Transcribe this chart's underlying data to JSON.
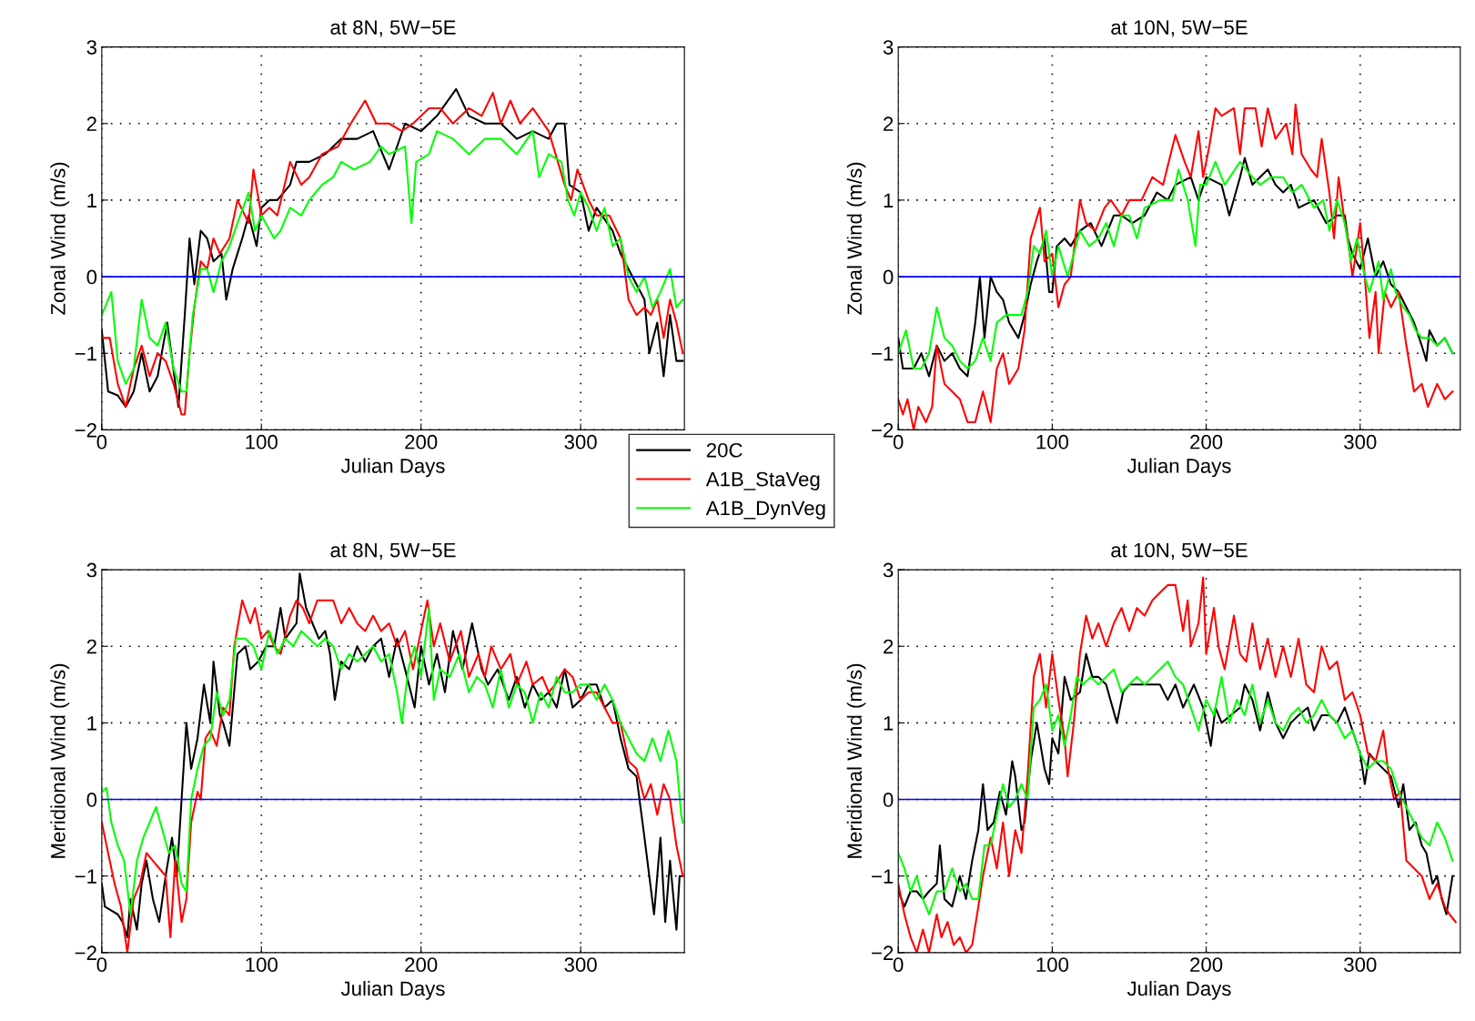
{
  "chart_data": [
    {
      "type": "line",
      "title": "at 8N, 5W−5E",
      "xlabel": "Julian Days",
      "ylabel": "Zonal Wind (m/s)",
      "xlim": [
        0,
        365
      ],
      "ylim": [
        -2,
        3
      ],
      "xticks": [
        0,
        100,
        200,
        300
      ],
      "yticks": [
        -2,
        -1,
        0,
        1,
        2,
        3
      ],
      "grid": true,
      "legend": "bottom right",
      "line_style": "solid",
      "ref_lines": [
        {
          "axis": "y",
          "value": 0,
          "color": "#0000ff"
        }
      ],
      "series": [
        {
          "name": "20C",
          "color": "#000000",
          "x": [
            0,
            4,
            10,
            15,
            20,
            25,
            30,
            35,
            41,
            48,
            52,
            55,
            58,
            62,
            66,
            70,
            75,
            78,
            82,
            88,
            92,
            97,
            100,
            105,
            110,
            118,
            122,
            130,
            140,
            150,
            160,
            170,
            180,
            190,
            200,
            210,
            222,
            230,
            240,
            250,
            260,
            270,
            280,
            285,
            290,
            293,
            300,
            305,
            310,
            320,
            325,
            330,
            335,
            340,
            343,
            348,
            352,
            356,
            360,
            364
          ],
          "values": [
            -0.7,
            -1.5,
            -1.55,
            -1.7,
            -1.5,
            -1.0,
            -1.5,
            -1.3,
            -0.6,
            -1.7,
            -0.5,
            0.5,
            -0.1,
            0.6,
            0.5,
            0.2,
            0.3,
            -0.3,
            0.1,
            0.5,
            0.8,
            0.4,
            0.9,
            1.0,
            1.0,
            1.2,
            1.5,
            1.5,
            1.6,
            1.8,
            1.8,
            1.9,
            1.4,
            2.0,
            1.9,
            2.1,
            2.45,
            2.1,
            2.0,
            2.0,
            1.8,
            1.9,
            1.8,
            2.0,
            2.0,
            1.2,
            1.1,
            0.6,
            0.9,
            0.6,
            0.3,
            0.1,
            -0.1,
            -0.3,
            -1.0,
            -0.6,
            -1.3,
            -0.5,
            -1.1,
            -1.1
          ]
        },
        {
          "name": "A1B_StaVeg",
          "color": "#ff0000",
          "x": [
            0,
            5,
            10,
            15,
            20,
            25,
            30,
            35,
            40,
            45,
            50,
            52,
            55,
            58,
            62,
            66,
            70,
            74,
            80,
            85,
            92,
            95,
            100,
            105,
            110,
            118,
            125,
            130,
            138,
            148,
            156,
            165,
            172,
            180,
            188,
            195,
            205,
            212,
            220,
            230,
            238,
            245,
            250,
            256,
            262,
            270,
            280,
            290,
            294,
            298,
            305,
            310,
            318,
            325,
            330,
            335,
            340,
            344,
            348,
            352,
            356,
            360,
            364
          ],
          "values": [
            -0.8,
            -0.8,
            -1.4,
            -1.7,
            -1.2,
            -0.9,
            -1.3,
            -1.0,
            -1.1,
            -1.4,
            -1.8,
            -1.8,
            -1.0,
            -0.4,
            0.2,
            0.1,
            0.5,
            0.3,
            0.5,
            1.0,
            0.7,
            1.4,
            0.8,
            0.9,
            0.8,
            1.5,
            1.2,
            1.3,
            1.6,
            1.7,
            2.0,
            2.3,
            2.0,
            2.0,
            1.9,
            2.0,
            2.2,
            2.2,
            2.0,
            2.2,
            2.1,
            2.4,
            2.0,
            2.3,
            2.0,
            2.2,
            1.9,
            1.2,
            1.0,
            1.4,
            1.0,
            0.8,
            0.8,
            0.5,
            -0.3,
            -0.5,
            -0.4,
            -0.5,
            -0.3,
            -0.8,
            -0.3,
            -0.6,
            -1.0
          ]
        },
        {
          "name": "A1B_DynVeg",
          "color": "#00ff00",
          "x": [
            0,
            6,
            10,
            15,
            20,
            25,
            30,
            35,
            40,
            45,
            50,
            53,
            57,
            62,
            66,
            70,
            75,
            80,
            85,
            92,
            96,
            100,
            108,
            112,
            118,
            125,
            130,
            138,
            145,
            150,
            158,
            168,
            175,
            180,
            190,
            194,
            197,
            205,
            210,
            220,
            230,
            240,
            250,
            260,
            270,
            274,
            280,
            288,
            292,
            296,
            300,
            305,
            310,
            315,
            320,
            325,
            330,
            335,
            340,
            345,
            350,
            356,
            360,
            364
          ],
          "values": [
            -0.5,
            -0.2,
            -1.1,
            -1.4,
            -1.2,
            -0.3,
            -0.8,
            -0.9,
            -0.6,
            -1.2,
            -1.5,
            -1.5,
            -0.5,
            0.1,
            0.1,
            -0.2,
            0.2,
            0.4,
            0.7,
            1.1,
            0.6,
            0.8,
            0.5,
            0.6,
            0.9,
            0.8,
            1.0,
            1.2,
            1.3,
            1.5,
            1.4,
            1.5,
            1.7,
            1.6,
            1.7,
            0.7,
            1.5,
            1.6,
            1.9,
            1.8,
            1.6,
            1.8,
            1.8,
            1.6,
            1.9,
            1.3,
            1.6,
            1.5,
            1.0,
            0.8,
            1.1,
            0.9,
            0.6,
            0.9,
            0.4,
            0.5,
            0.0,
            -0.2,
            0.0,
            -0.4,
            -0.2,
            0.1,
            -0.4,
            -0.3
          ]
        }
      ]
    },
    {
      "type": "line",
      "title": "at 10N, 5W−5E",
      "xlabel": "Julian Days",
      "ylabel": "Zonal Wind (m/s)",
      "xlim": [
        0,
        365
      ],
      "ylim": [
        -2,
        3
      ],
      "xticks": [
        0,
        100,
        200,
        300
      ],
      "yticks": [
        -2,
        -1,
        0,
        1,
        2,
        3
      ],
      "grid": true,
      "line_style": "solid",
      "ref_lines": [
        {
          "axis": "y",
          "value": 0,
          "color": "#0000ff"
        }
      ],
      "series": [
        {
          "color": "#000000",
          "x": [
            0,
            3,
            10,
            15,
            20,
            25,
            30,
            35,
            40,
            45,
            50,
            53,
            56,
            60,
            64,
            68,
            72,
            78,
            82,
            86,
            90,
            95,
            98,
            100,
            103,
            108,
            112,
            118,
            125,
            132,
            140,
            145,
            152,
            160,
            168,
            175,
            180,
            190,
            195,
            200,
            210,
            215,
            222,
            225,
            230,
            240,
            245,
            250,
            255,
            260,
            270,
            278,
            285,
            290,
            292,
            295,
            300,
            305,
            310,
            315,
            320,
            325,
            330,
            335,
            340,
            343,
            345,
            350,
            355,
            360
          ],
          "values": [
            -0.8,
            -1.2,
            -1.2,
            -1.0,
            -1.3,
            -0.9,
            -1.1,
            -1.0,
            -1.2,
            -1.3,
            -0.6,
            0.0,
            -0.8,
            0.0,
            -0.2,
            -0.3,
            -0.6,
            -0.8,
            -0.5,
            -0.1,
            0.2,
            0.5,
            -0.2,
            -0.2,
            0.4,
            0.5,
            0.4,
            0.6,
            0.7,
            0.4,
            0.8,
            0.8,
            0.7,
            0.8,
            1.1,
            1.0,
            1.2,
            1.3,
            1.0,
            1.3,
            1.2,
            0.8,
            1.3,
            1.55,
            1.2,
            1.4,
            1.2,
            1.1,
            1.2,
            0.9,
            1.0,
            0.7,
            0.8,
            0.8,
            0.5,
            0.3,
            0.1,
            0.5,
            0.0,
            0.2,
            -0.1,
            -0.2,
            -0.4,
            -0.6,
            -0.9,
            -1.1,
            -0.7,
            -0.9,
            -0.8,
            -1.0
          ]
        },
        {
          "color": "#ff0000",
          "x": [
            0,
            3,
            6,
            10,
            13,
            18,
            22,
            25,
            30,
            35,
            40,
            45,
            50,
            55,
            60,
            64,
            68,
            72,
            78,
            82,
            86,
            92,
            95,
            100,
            104,
            108,
            112,
            118,
            122,
            128,
            134,
            138,
            145,
            150,
            158,
            165,
            172,
            180,
            186,
            190,
            195,
            198,
            202,
            206,
            210,
            218,
            222,
            225,
            232,
            236,
            240,
            245,
            252,
            256,
            258,
            262,
            268,
            272,
            275,
            280,
            283,
            286,
            290,
            292,
            295,
            300,
            303,
            306,
            310,
            312,
            316,
            320,
            325,
            330,
            335,
            340,
            344,
            350,
            355,
            360
          ],
          "values": [
            -1.6,
            -1.8,
            -1.6,
            -2.0,
            -1.7,
            -1.9,
            -1.7,
            -0.9,
            -1.4,
            -1.5,
            -1.6,
            -1.9,
            -1.9,
            -1.5,
            -1.9,
            -1.2,
            -1.0,
            -1.4,
            -1.2,
            -0.7,
            0.5,
            0.9,
            0.2,
            0.3,
            -0.4,
            -0.1,
            0.0,
            1.0,
            0.7,
            0.6,
            0.9,
            1.0,
            0.8,
            1.0,
            1.0,
            1.3,
            1.2,
            1.85,
            1.5,
            1.3,
            1.9,
            1.3,
            1.7,
            2.2,
            2.1,
            2.2,
            1.6,
            2.2,
            2.2,
            1.7,
            2.2,
            1.8,
            2.0,
            1.6,
            2.25,
            1.6,
            1.4,
            1.3,
            1.8,
            1.1,
            0.5,
            1.3,
            0.7,
            0.5,
            0.0,
            0.7,
            0.0,
            -0.8,
            -0.2,
            -1.0,
            -0.2,
            -0.4,
            -0.2,
            -0.9,
            -1.5,
            -1.4,
            -1.7,
            -1.4,
            -1.6,
            -1.5
          ]
        },
        {
          "color": "#00ff00",
          "x": [
            0,
            5,
            10,
            15,
            20,
            25,
            30,
            35,
            40,
            45,
            50,
            55,
            60,
            64,
            70,
            75,
            80,
            84,
            88,
            92,
            96,
            100,
            104,
            110,
            114,
            118,
            124,
            130,
            135,
            140,
            145,
            150,
            155,
            160,
            170,
            178,
            182,
            188,
            193,
            196,
            200,
            206,
            212,
            222,
            230,
            235,
            242,
            250,
            256,
            262,
            270,
            276,
            280,
            285,
            290,
            294,
            298,
            303,
            306,
            312,
            315,
            320,
            323,
            328,
            332,
            336,
            340,
            345,
            350,
            355,
            360
          ],
          "values": [
            -1.0,
            -0.7,
            -1.2,
            -1.2,
            -1.0,
            -0.4,
            -0.8,
            -0.9,
            -1.1,
            -1.2,
            -1.1,
            -0.8,
            -1.1,
            -0.6,
            -0.5,
            -0.5,
            -0.5,
            -0.2,
            0.4,
            0.3,
            0.6,
            0.0,
            0.4,
            0.0,
            0.3,
            0.6,
            0.4,
            0.5,
            0.7,
            0.4,
            0.8,
            0.8,
            0.5,
            0.9,
            1.0,
            1.0,
            1.4,
            1.0,
            0.4,
            1.2,
            1.2,
            1.5,
            1.2,
            1.5,
            1.3,
            1.2,
            1.3,
            1.3,
            1.1,
            1.2,
            0.9,
            1.0,
            0.6,
            1.0,
            0.7,
            0.2,
            0.5,
            0.0,
            -0.2,
            0.2,
            -0.3,
            0.1,
            -0.2,
            -0.4,
            -0.5,
            -0.7,
            -0.8,
            -0.8,
            -0.9,
            -0.8,
            -1.0
          ]
        }
      ]
    },
    {
      "type": "line",
      "title": "at 8N, 5W−5E",
      "xlabel": "Julian Days",
      "ylabel": "Meridional Wind (m/s)",
      "xlim": [
        0,
        365
      ],
      "ylim": [
        -2,
        3
      ],
      "xticks": [
        0,
        100,
        200,
        300
      ],
      "yticks": [
        -2,
        -1,
        0,
        1,
        2,
        3
      ],
      "grid": true,
      "line_style": "solid",
      "ref_lines": [
        {
          "axis": "y",
          "value": 0,
          "color": "#0000ff"
        }
      ],
      "series": [
        {
          "color": "#000000",
          "x": [
            0,
            2,
            6,
            10,
            13,
            16,
            18,
            20,
            22,
            25,
            28,
            32,
            36,
            40,
            44,
            47,
            50,
            53,
            56,
            60,
            64,
            68,
            70,
            74,
            76,
            80,
            85,
            90,
            93,
            98,
            103,
            108,
            112,
            115,
            122,
            124,
            128,
            132,
            136,
            140,
            143,
            146,
            150,
            155,
            160,
            165,
            170,
            175,
            180,
            185,
            190,
            196,
            200,
            205,
            210,
            215,
            220,
            226,
            232,
            238,
            242,
            248,
            255,
            260,
            265,
            270,
            275,
            280,
            285,
            290,
            295,
            300,
            305,
            310,
            315,
            320,
            325,
            330,
            335,
            340,
            343,
            346,
            350,
            353,
            356,
            360,
            362,
            364
          ],
          "values": [
            -1.1,
            -1.4,
            -1.45,
            -1.5,
            -1.6,
            -1.8,
            -1.3,
            -1.5,
            -1.7,
            -1.1,
            -0.8,
            -1.3,
            -1.6,
            -1.0,
            -0.5,
            -1.0,
            0.0,
            1.0,
            0.4,
            0.8,
            1.5,
            1.0,
            1.8,
            1.1,
            1.0,
            0.7,
            1.9,
            2.0,
            1.7,
            1.8,
            2.0,
            2.0,
            2.5,
            2.1,
            2.3,
            2.95,
            2.5,
            2.3,
            2.1,
            2.2,
            1.9,
            1.3,
            1.8,
            1.7,
            2.0,
            1.8,
            2.0,
            2.1,
            1.6,
            2.1,
            1.7,
            1.2,
            2.0,
            1.5,
            1.9,
            1.4,
            2.2,
            1.7,
            2.3,
            1.7,
            1.5,
            1.7,
            1.3,
            1.6,
            1.2,
            1.5,
            1.3,
            1.4,
            1.2,
            1.7,
            1.2,
            1.3,
            1.5,
            1.5,
            1.2,
            1.3,
            0.8,
            0.4,
            0.3,
            -0.5,
            -1.0,
            -1.5,
            -0.5,
            -1.6,
            -0.8,
            -1.7,
            -1.0,
            -1.0
          ]
        },
        {
          "color": "#ff0000",
          "x": [
            0,
            4,
            8,
            12,
            16,
            20,
            24,
            28,
            32,
            36,
            40,
            43,
            46,
            50,
            53,
            56,
            60,
            62,
            65,
            68,
            72,
            76,
            80,
            83,
            88,
            93,
            96,
            100,
            104,
            108,
            112,
            118,
            122,
            126,
            130,
            135,
            140,
            145,
            150,
            155,
            160,
            165,
            170,
            175,
            180,
            185,
            190,
            195,
            200,
            204,
            208,
            212,
            218,
            225,
            230,
            236,
            240,
            244,
            250,
            256,
            260,
            266,
            270,
            276,
            280,
            284,
            290,
            295,
            300,
            305,
            310,
            315,
            320,
            325,
            330,
            335,
            340,
            344,
            348,
            352,
            356,
            360,
            364
          ],
          "values": [
            -0.3,
            -0.7,
            -1.1,
            -1.4,
            -2.0,
            -1.3,
            -1.1,
            -0.7,
            -0.8,
            -0.9,
            -1.0,
            -1.8,
            -0.8,
            -1.6,
            -1.3,
            -0.3,
            0.1,
            0.0,
            0.8,
            0.9,
            0.7,
            1.2,
            1.1,
            2.0,
            2.6,
            2.3,
            2.5,
            2.1,
            2.2,
            2.0,
            1.9,
            2.4,
            2.6,
            2.5,
            2.3,
            2.6,
            2.6,
            2.6,
            2.3,
            2.5,
            2.3,
            2.2,
            2.4,
            2.2,
            2.3,
            2.0,
            2.2,
            1.7,
            2.2,
            2.6,
            2.0,
            2.3,
            1.8,
            2.2,
            1.6,
            1.9,
            1.6,
            2.0,
            1.7,
            1.9,
            1.5,
            1.8,
            1.5,
            1.6,
            1.4,
            1.5,
            1.7,
            1.6,
            1.3,
            1.4,
            1.4,
            1.2,
            1.0,
            1.0,
            0.5,
            0.4,
            0.0,
            0.2,
            -0.2,
            0.2,
            0.0,
            -0.6,
            -1.0
          ]
        },
        {
          "color": "#00ff00",
          "x": [
            0,
            3,
            6,
            10,
            14,
            18,
            22,
            26,
            30,
            34,
            38,
            42,
            46,
            50,
            53,
            56,
            60,
            64,
            68,
            72,
            76,
            80,
            84,
            90,
            95,
            100,
            105,
            110,
            115,
            120,
            125,
            130,
            135,
            140,
            145,
            150,
            155,
            160,
            165,
            170,
            175,
            180,
            185,
            188,
            192,
            196,
            200,
            205,
            208,
            212,
            218,
            224,
            230,
            235,
            240,
            245,
            250,
            255,
            260,
            265,
            270,
            275,
            280,
            285,
            290,
            295,
            300,
            305,
            310,
            315,
            320,
            325,
            330,
            335,
            340,
            345,
            350,
            355,
            360,
            363,
            364
          ],
          "values": [
            0.1,
            0.15,
            -0.3,
            -0.6,
            -0.8,
            -1.5,
            -0.8,
            -0.5,
            -0.3,
            -0.1,
            -0.4,
            -0.7,
            -0.6,
            -1.1,
            -1.2,
            0.0,
            0.4,
            0.7,
            0.8,
            1.4,
            1.1,
            1.3,
            2.1,
            2.1,
            2.0,
            1.7,
            2.2,
            1.9,
            2.1,
            2.0,
            2.2,
            2.1,
            2.0,
            2.1,
            2.0,
            1.7,
            1.9,
            1.8,
            1.9,
            2.0,
            1.8,
            1.9,
            1.4,
            1.0,
            1.7,
            2.0,
            1.6,
            2.5,
            1.3,
            1.7,
            1.6,
            1.9,
            1.4,
            1.6,
            1.5,
            1.2,
            1.7,
            1.2,
            1.5,
            1.4,
            1.0,
            1.4,
            1.2,
            1.6,
            1.4,
            1.4,
            1.5,
            1.5,
            1.3,
            1.5,
            1.3,
            1.0,
            0.8,
            0.6,
            0.5,
            0.8,
            0.5,
            0.9,
            0.5,
            -0.2,
            -0.3
          ]
        }
      ]
    },
    {
      "type": "line",
      "title": "at 10N, 5W−5E",
      "xlabel": "Julian Days",
      "ylabel": "Meridional Wind (m/s)",
      "xlim": [
        0,
        365
      ],
      "ylim": [
        -2,
        3
      ],
      "xticks": [
        0,
        100,
        200,
        300
      ],
      "yticks": [
        -2,
        -1,
        0,
        1,
        2,
        3
      ],
      "grid": true,
      "line_style": "solid",
      "ref_lines": [
        {
          "axis": "y",
          "value": 0,
          "color": "#0000ff"
        }
      ],
      "series": [
        {
          "color": "#000000",
          "x": [
            0,
            4,
            8,
            12,
            16,
            20,
            25,
            27,
            30,
            35,
            40,
            44,
            48,
            52,
            55,
            58,
            62,
            66,
            70,
            74,
            76,
            80,
            82,
            86,
            90,
            95,
            98,
            100,
            104,
            108,
            112,
            118,
            122,
            126,
            130,
            135,
            142,
            146,
            150,
            155,
            162,
            170,
            175,
            180,
            185,
            192,
            198,
            200,
            203,
            206,
            210,
            216,
            222,
            225,
            230,
            235,
            240,
            245,
            250,
            255,
            260,
            266,
            270,
            275,
            280,
            285,
            290,
            295,
            300,
            303,
            306,
            310,
            315,
            320,
            325,
            328,
            332,
            336,
            340,
            343,
            347,
            350,
            353,
            356,
            360
          ],
          "values": [
            -1.2,
            -1.4,
            -1.2,
            -1.2,
            -1.3,
            -1.2,
            -1.1,
            -0.6,
            -1.3,
            -1.4,
            -1.0,
            -1.3,
            -0.8,
            -0.4,
            0.2,
            -0.4,
            -0.3,
            0.1,
            -0.2,
            0.5,
            0.3,
            -0.4,
            -0.3,
            0.5,
            1.0,
            0.4,
            0.2,
            0.8,
            0.6,
            1.6,
            1.3,
            1.4,
            1.9,
            1.6,
            1.6,
            1.5,
            1.0,
            1.4,
            1.5,
            1.5,
            1.5,
            1.5,
            1.3,
            1.5,
            1.2,
            1.5,
            1.2,
            1.0,
            0.7,
            1.2,
            1.0,
            1.1,
            1.2,
            1.5,
            1.3,
            0.9,
            1.4,
            1.0,
            0.8,
            1.0,
            1.1,
            1.2,
            0.9,
            1.1,
            1.1,
            1.0,
            1.2,
            0.9,
            0.6,
            0.2,
            0.6,
            0.5,
            0.4,
            0.3,
            -0.1,
            0.2,
            -0.4,
            -0.3,
            -0.6,
            -0.7,
            -1.1,
            -1.0,
            -1.3,
            -1.5,
            -1.0
          ]
        },
        {
          "color": "#ff0000",
          "x": [
            0,
            4,
            8,
            12,
            16,
            20,
            25,
            28,
            32,
            36,
            40,
            44,
            48,
            52,
            55,
            60,
            64,
            68,
            72,
            76,
            80,
            84,
            88,
            92,
            96,
            100,
            104,
            108,
            110,
            114,
            118,
            122,
            126,
            130,
            135,
            140,
            145,
            150,
            155,
            160,
            165,
            170,
            175,
            180,
            185,
            188,
            190,
            195,
            198,
            200,
            205,
            208,
            212,
            218,
            222,
            226,
            230,
            235,
            240,
            245,
            250,
            255,
            260,
            265,
            270,
            275,
            280,
            285,
            290,
            295,
            300,
            305,
            310,
            315,
            318,
            322,
            326,
            330,
            335,
            340,
            345,
            350,
            355,
            358,
            362
          ],
          "values": [
            -1.1,
            -1.5,
            -1.8,
            -2.0,
            -1.7,
            -2.0,
            -1.5,
            -1.8,
            -1.6,
            -1.9,
            -1.8,
            -2.0,
            -1.9,
            -1.4,
            -1.0,
            -0.5,
            -0.9,
            -0.3,
            -1.0,
            -0.4,
            -0.7,
            0.3,
            1.6,
            1.9,
            1.2,
            1.9,
            1.3,
            0.8,
            0.3,
            1.0,
            1.9,
            2.4,
            2.1,
            2.3,
            2.0,
            2.3,
            2.5,
            2.2,
            2.5,
            2.4,
            2.6,
            2.7,
            2.8,
            2.8,
            2.2,
            2.6,
            2.0,
            2.3,
            2.9,
            1.9,
            2.5,
            2.0,
            1.7,
            2.4,
            1.9,
            1.8,
            2.3,
            1.7,
            2.1,
            1.6,
            2.0,
            1.6,
            2.1,
            1.5,
            1.4,
            2.0,
            1.7,
            1.8,
            1.3,
            1.4,
            1.1,
            0.6,
            0.5,
            0.9,
            0.4,
            0.0,
            0.1,
            -0.8,
            -0.9,
            -1.0,
            -1.3,
            -1.1,
            -1.4,
            -1.5,
            -1.6
          ]
        },
        {
          "color": "#00ff00",
          "x": [
            0,
            4,
            8,
            12,
            16,
            20,
            25,
            30,
            35,
            40,
            44,
            48,
            52,
            56,
            60,
            64,
            68,
            72,
            76,
            80,
            84,
            88,
            92,
            96,
            100,
            104,
            108,
            112,
            116,
            120,
            125,
            130,
            135,
            140,
            145,
            150,
            155,
            160,
            165,
            170,
            175,
            180,
            185,
            190,
            195,
            200,
            205,
            210,
            215,
            220,
            225,
            230,
            235,
            240,
            245,
            250,
            255,
            260,
            265,
            270,
            275,
            280,
            285,
            290,
            295,
            300,
            305,
            310,
            315,
            320,
            325,
            330,
            335,
            340,
            345,
            350,
            355,
            360
          ],
          "values": [
            -0.7,
            -0.9,
            -1.2,
            -1.0,
            -1.3,
            -1.5,
            -1.2,
            -1.2,
            -0.9,
            -1.2,
            -1.1,
            -1.3,
            -1.3,
            -0.6,
            -0.6,
            -0.2,
            0.2,
            -0.1,
            0.0,
            0.2,
            0.0,
            1.2,
            1.3,
            1.5,
            0.9,
            1.1,
            0.7,
            1.1,
            1.6,
            1.5,
            1.6,
            1.5,
            1.6,
            1.7,
            1.4,
            1.5,
            1.6,
            1.5,
            1.6,
            1.7,
            1.8,
            1.6,
            1.5,
            1.2,
            0.9,
            1.3,
            1.1,
            1.6,
            1.0,
            1.3,
            1.1,
            1.5,
            1.0,
            1.3,
            1.0,
            0.9,
            1.1,
            1.2,
            1.0,
            1.1,
            1.3,
            1.1,
            1.0,
            0.8,
            0.9,
            0.6,
            0.4,
            0.5,
            0.5,
            0.4,
            0.1,
            -0.1,
            -0.3,
            -0.5,
            -0.6,
            -0.3,
            -0.5,
            -0.8
          ]
        }
      ]
    }
  ]
}
